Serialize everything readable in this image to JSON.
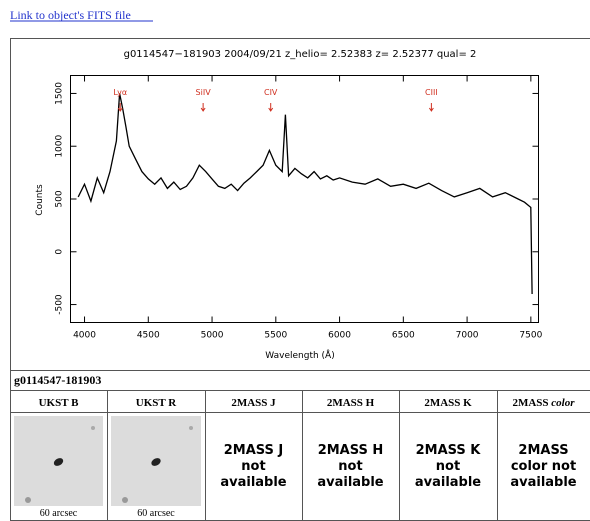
{
  "link": "Link to object's FITS file",
  "chart_data": {
    "type": "line",
    "title": "g0114547−181903 2004/09/21 z_helio= 2.52383 z= 2.52377 qual= 2",
    "xlabel": "Wavelength (Å)",
    "ylabel": "Counts",
    "color": "#000000",
    "x": [
      3950,
      4000,
      4050,
      4100,
      4150,
      4200,
      4250,
      4275,
      4300,
      4325,
      4350,
      4400,
      4450,
      4500,
      4550,
      4600,
      4650,
      4700,
      4750,
      4800,
      4850,
      4900,
      4950,
      5000,
      5050,
      5100,
      5150,
      5200,
      5250,
      5300,
      5350,
      5400,
      5450,
      5500,
      5550,
      5575,
      5600,
      5650,
      5700,
      5750,
      5800,
      5850,
      5900,
      5950,
      6000,
      6100,
      6200,
      6300,
      6400,
      6500,
      6600,
      6700,
      6800,
      6900,
      7000,
      7100,
      7200,
      7300,
      7400,
      7450,
      7500,
      7510
    ],
    "values": [
      520,
      640,
      480,
      700,
      560,
      760,
      1050,
      1500,
      1350,
      1180,
      1000,
      880,
      760,
      690,
      640,
      700,
      600,
      660,
      590,
      620,
      700,
      820,
      760,
      690,
      620,
      600,
      640,
      580,
      650,
      700,
      760,
      820,
      960,
      820,
      760,
      1300,
      720,
      790,
      740,
      700,
      760,
      690,
      720,
      680,
      700,
      660,
      640,
      690,
      620,
      640,
      600,
      650,
      580,
      520,
      560,
      600,
      520,
      560,
      500,
      470,
      420,
      -400
    ],
    "xlim": [
      3890,
      7560
    ],
    "ylim": [
      -670,
      1670
    ],
    "xticks": [
      4000,
      4500,
      5000,
      5500,
      6000,
      6500,
      7000,
      7500
    ],
    "yticks": [
      -500,
      0,
      500,
      1000,
      1500
    ],
    "annotations": [
      {
        "label": "Lyα",
        "x": 4280
      },
      {
        "label": "SiIV",
        "x": 4930
      },
      {
        "label": "CIV",
        "x": 5460
      },
      {
        "label": "CIII",
        "x": 6720
      }
    ],
    "annotation_color": "#d03020"
  },
  "table": {
    "object": "g0114547-181903",
    "headers": [
      {
        "text": "UKST B"
      },
      {
        "text": "UKST R"
      },
      {
        "text": "2MASS J"
      },
      {
        "text": "2MASS H"
      },
      {
        "text": "2MASS K"
      },
      {
        "text": "2MASS",
        "em": "color"
      }
    ],
    "captions": [
      "60 arcsec",
      "60 arcsec"
    ],
    "cells": [
      [
        "2MASS J",
        "not",
        "available"
      ],
      [
        "2MASS H",
        "not",
        "available"
      ],
      [
        "2MASS K",
        "not",
        "available"
      ],
      [
        "2MASS",
        "color not",
        "available"
      ]
    ]
  }
}
